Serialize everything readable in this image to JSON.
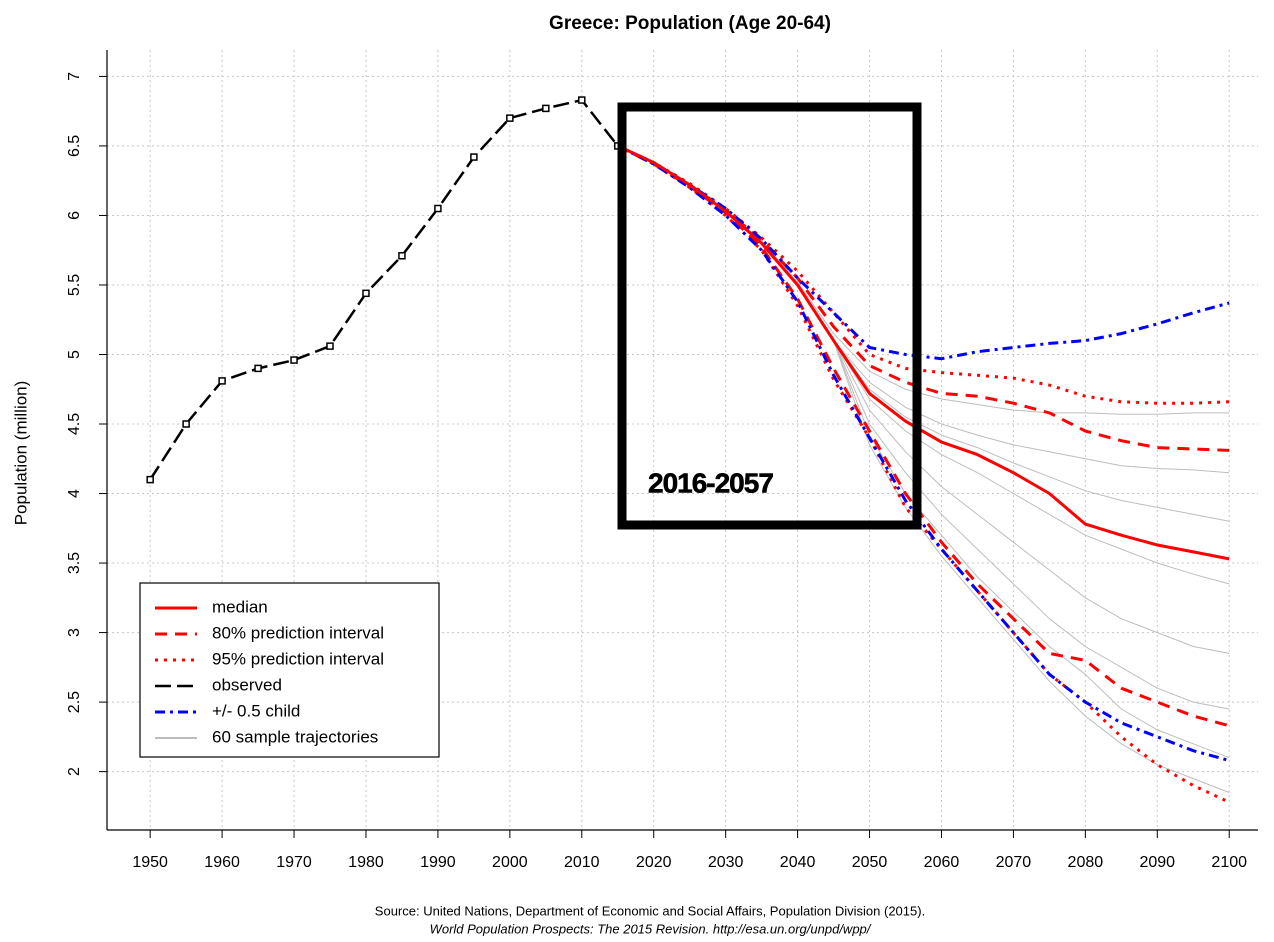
{
  "chart_data": {
    "type": "line",
    "title": "Greece: Population (Age 20-64)",
    "y_label": "Population (million)",
    "source": "Source: United Nations, Department of Economic and Social Affairs, Population Division (2015).",
    "source_line2": "World Population Prospects: The 2015 Revision. http://esa.un.org/unpd/wpp/",
    "annotation": "2016-2057",
    "xlim": [
      1944,
      2104
    ],
    "ylim": [
      1.58,
      7.19
    ],
    "xticks": [
      1950,
      1960,
      1970,
      1980,
      1990,
      2000,
      2010,
      2020,
      2030,
      2040,
      2050,
      2060,
      2070,
      2080,
      2090,
      2100
    ],
    "yticks": [
      2,
      2.5,
      3,
      3.5,
      4,
      4.5,
      5,
      5.5,
      6,
      6.5,
      7
    ],
    "grid": true,
    "legend": "bottom-left",
    "series": [
      {
        "name": "60 sample trajectories",
        "color": "#bdbdbd",
        "style": "thin",
        "x": [
          2015,
          2020,
          2025,
          2030,
          2035,
          2040,
          2045,
          2050,
          2055,
          2060,
          2065,
          2070,
          2075,
          2080,
          2085,
          2090,
          2095,
          2100
        ],
        "lines": [
          [
            6.5,
            6.38,
            6.22,
            6.04,
            5.82,
            5.52,
            5.15,
            4.88,
            4.75,
            4.68,
            4.64,
            4.6,
            4.58,
            4.58,
            4.57,
            4.57,
            4.58,
            4.58
          ],
          [
            6.5,
            6.38,
            6.22,
            6.03,
            5.8,
            5.5,
            5.1,
            4.8,
            4.62,
            4.5,
            4.42,
            4.35,
            4.3,
            4.25,
            4.2,
            4.18,
            4.17,
            4.15
          ],
          [
            6.5,
            6.38,
            6.22,
            6.03,
            5.8,
            5.5,
            5.1,
            4.75,
            4.55,
            4.42,
            4.33,
            4.22,
            4.12,
            4.02,
            3.95,
            3.9,
            3.85,
            3.8
          ],
          [
            6.5,
            6.38,
            6.22,
            6.03,
            5.8,
            5.5,
            5.1,
            4.68,
            4.45,
            4.28,
            4.15,
            4.0,
            3.85,
            3.7,
            3.6,
            3.5,
            3.42,
            3.35
          ],
          [
            6.5,
            6.38,
            6.22,
            6.03,
            5.8,
            5.5,
            5.1,
            4.6,
            4.3,
            4.05,
            3.85,
            3.65,
            3.45,
            3.25,
            3.1,
            3.0,
            2.9,
            2.85
          ],
          [
            6.5,
            6.38,
            6.22,
            6.03,
            5.8,
            5.5,
            5.1,
            4.5,
            4.15,
            3.85,
            3.6,
            3.35,
            3.1,
            2.9,
            2.75,
            2.6,
            2.5,
            2.45
          ],
          [
            6.5,
            6.38,
            6.22,
            6.03,
            5.8,
            5.5,
            5.1,
            4.42,
            4.0,
            3.7,
            3.4,
            3.15,
            2.9,
            2.7,
            2.45,
            2.3,
            2.2,
            2.1
          ],
          [
            6.5,
            6.38,
            6.22,
            6.03,
            5.8,
            5.5,
            5.1,
            4.35,
            3.9,
            3.55,
            3.25,
            2.95,
            2.65,
            2.4,
            2.2,
            2.05,
            1.95,
            1.85
          ]
        ]
      },
      {
        "name": "95% prediction interval",
        "color": "#ff0000",
        "style": "dotted",
        "x": [
          2015,
          2020,
          2025,
          2030,
          2035,
          2040,
          2045,
          2050,
          2055,
          2060,
          2065,
          2070,
          2075,
          2080,
          2085,
          2090,
          2095,
          2100
        ],
        "lines": [
          [
            6.5,
            6.38,
            6.23,
            6.05,
            5.84,
            5.6,
            5.3,
            5.0,
            4.9,
            4.87,
            4.85,
            4.83,
            4.78,
            4.7,
            4.66,
            4.65,
            4.65,
            4.66
          ],
          [
            6.5,
            6.37,
            6.2,
            6.0,
            5.75,
            5.35,
            4.82,
            4.4,
            3.9,
            3.6,
            3.3,
            3.0,
            2.7,
            2.5,
            2.25,
            2.05,
            1.9,
            1.78
          ]
        ]
      },
      {
        "name": "80% prediction interval",
        "color": "#ff0000",
        "style": "dashed",
        "x": [
          2015,
          2020,
          2025,
          2030,
          2035,
          2040,
          2045,
          2050,
          2055,
          2060,
          2065,
          2070,
          2075,
          2080,
          2085,
          2090,
          2095,
          2100
        ],
        "lines": [
          [
            6.5,
            6.38,
            6.22,
            6.04,
            5.82,
            5.55,
            5.2,
            4.92,
            4.8,
            4.72,
            4.7,
            4.65,
            4.58,
            4.45,
            4.38,
            4.33,
            4.32,
            4.31
          ],
          [
            6.5,
            6.37,
            6.21,
            6.02,
            5.77,
            5.4,
            4.9,
            4.45,
            4.0,
            3.65,
            3.35,
            3.1,
            2.85,
            2.8,
            2.6,
            2.5,
            2.4,
            2.33
          ]
        ]
      },
      {
        "name": "+/- 0.5 child",
        "color": "#0000ff",
        "style": "dashdot",
        "x": [
          2015,
          2020,
          2025,
          2030,
          2035,
          2040,
          2045,
          2050,
          2055,
          2060,
          2065,
          2070,
          2075,
          2080,
          2085,
          2090,
          2095,
          2100
        ],
        "lines": [
          [
            6.5,
            6.38,
            6.22,
            6.05,
            5.83,
            5.55,
            5.3,
            5.05,
            5.0,
            4.97,
            5.02,
            5.05,
            5.08,
            5.1,
            5.15,
            5.22,
            5.3,
            5.37
          ],
          [
            6.5,
            6.37,
            6.2,
            6.0,
            5.75,
            5.38,
            4.85,
            4.4,
            3.95,
            3.6,
            3.3,
            3.0,
            2.7,
            2.5,
            2.35,
            2.25,
            2.15,
            2.08
          ]
        ]
      },
      {
        "name": "median",
        "color": "#ff0000",
        "style": "solid",
        "x": [
          2015,
          2020,
          2025,
          2030,
          2035,
          2040,
          2045,
          2050,
          2055,
          2060,
          2065,
          2070,
          2075,
          2080,
          2085,
          2090,
          2095,
          2100
        ],
        "lines": [
          [
            6.5,
            6.38,
            6.22,
            6.03,
            5.8,
            5.5,
            5.1,
            4.72,
            4.52,
            4.37,
            4.28,
            4.15,
            4.0,
            3.78,
            3.7,
            3.63,
            3.58,
            3.53
          ]
        ]
      },
      {
        "name": "observed",
        "color": "#000000",
        "style": "longdash",
        "markers": true,
        "x": [
          1950,
          1955,
          1960,
          1965,
          1970,
          1975,
          1980,
          1985,
          1990,
          1995,
          2000,
          2005,
          2010,
          2015
        ],
        "lines": [
          [
            4.1,
            4.5,
            4.81,
            4.9,
            4.96,
            5.06,
            5.44,
            5.71,
            6.05,
            6.42,
            6.7,
            6.77,
            6.83,
            6.5
          ]
        ]
      }
    ],
    "legend_order": [
      "median",
      "80% prediction interval",
      "95% prediction interval",
      "observed",
      "+/- 0.5 child",
      "60 sample trajectories"
    ]
  }
}
